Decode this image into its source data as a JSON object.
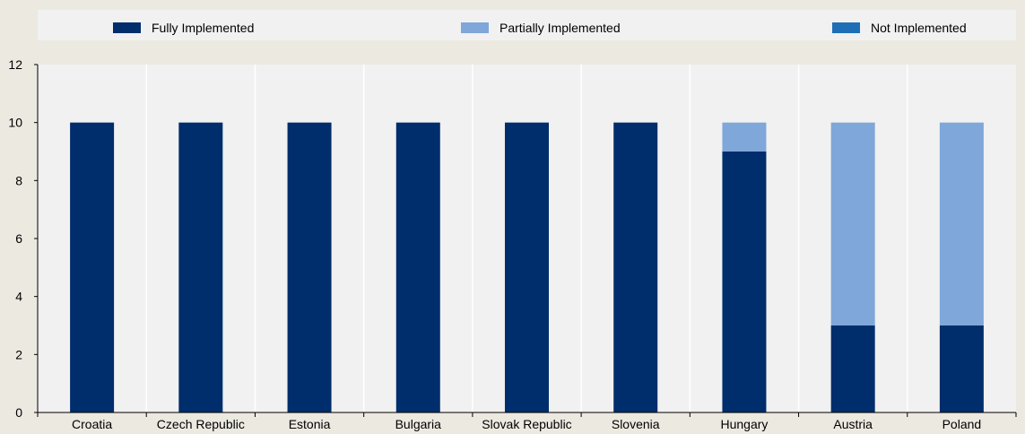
{
  "chart_data": {
    "type": "bar",
    "stacked": true,
    "categories": [
      "Croatia",
      "Czech Republic",
      "Estonia",
      "Bulgaria",
      "Slovak Republic",
      "Slovenia",
      "Hungary",
      "Austria",
      "Poland"
    ],
    "series": [
      {
        "name": "Fully Implemented",
        "color": "#002d6b",
        "values": [
          10,
          10,
          10,
          10,
          10,
          10,
          9,
          3,
          3
        ]
      },
      {
        "name": "Partially Implemented",
        "color": "#7fa7d9",
        "values": [
          0,
          0,
          0,
          0,
          0,
          0,
          1,
          7,
          7
        ]
      },
      {
        "name": "Not Implemented",
        "color": "#1f6fb6",
        "values": [
          0,
          0,
          0,
          0,
          0,
          0,
          0,
          0,
          0
        ]
      }
    ],
    "ylim": [
      0,
      12
    ],
    "yticks": [
      "0",
      "2",
      "4",
      "6",
      "8",
      "10",
      "12"
    ],
    "grid": "vertical",
    "legend_position": "top"
  }
}
